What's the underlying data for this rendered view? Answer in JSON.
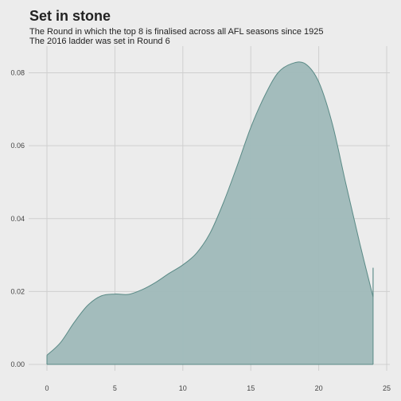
{
  "chart": {
    "title": "Set in stone",
    "subtitle_lines": [
      "The Round in which the top 8 is finalised across all AFL seasons since 1925",
      "The 2016 ladder was set in Round 6"
    ]
  },
  "chart_data": {
    "type": "area",
    "title": "Set in stone",
    "subtitle": "The Round in which the top 8 is finalised across all AFL seasons since 1925\nThe 2016 ladder was set in Round 6",
    "xlabel": "",
    "ylabel": "",
    "xlim": [
      0,
      25
    ],
    "ylim": [
      0,
      0.085
    ],
    "x_ticks": [
      0,
      5,
      10,
      15,
      20,
      25
    ],
    "y_ticks": [
      0.0,
      0.02,
      0.04,
      0.06,
      0.08
    ],
    "x_tick_labels": [
      "0",
      "5",
      "10",
      "15",
      "20",
      "25"
    ],
    "y_tick_labels": [
      "0.00",
      "0.02",
      "0.04",
      "0.06",
      "0.08"
    ],
    "grid": true,
    "fill_color": "#9fb9b9",
    "line_color": "#5a8a86",
    "series": [
      {
        "x": [
          0,
          1,
          2,
          3,
          4,
          5,
          6,
          7,
          8,
          9,
          10,
          11,
          12,
          13,
          14,
          15,
          16,
          17,
          18,
          19,
          20,
          21,
          22,
          23,
          24,
          24
        ],
        "y": [
          0.0025,
          0.006,
          0.0115,
          0.0162,
          0.0188,
          0.0193,
          0.0192,
          0.0205,
          0.0225,
          0.025,
          0.0273,
          0.0305,
          0.036,
          0.0445,
          0.0545,
          0.065,
          0.0735,
          0.08,
          0.0825,
          0.0825,
          0.0775,
          0.066,
          0.0495,
          0.0335,
          0.0185,
          0.0265
        ]
      }
    ]
  }
}
